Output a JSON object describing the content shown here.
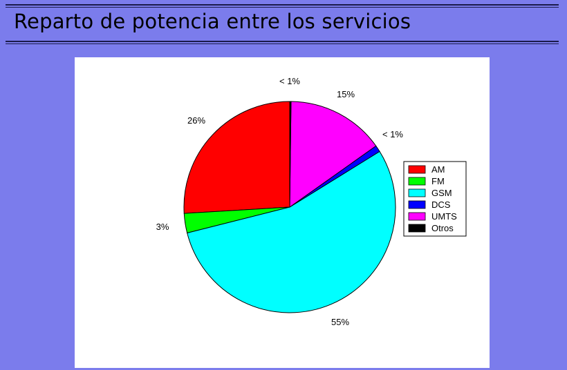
{
  "slide": {
    "title": "Reparto de potencia entre los servicios"
  },
  "chart_data": {
    "type": "pie",
    "title": "",
    "categories": [
      "AM",
      "FM",
      "GSM",
      "DCS",
      "UMTS",
      "Otros"
    ],
    "values": [
      26,
      3,
      55,
      1,
      15,
      0.2
    ],
    "labels": [
      "26%",
      "3%",
      "55%",
      "< 1%",
      "15%",
      "< 1%"
    ],
    "colors": [
      "#ff0000",
      "#00ff00",
      "#00ffff",
      "#0000ff",
      "#ff00ff",
      "#000000"
    ],
    "legend": {
      "position": "right",
      "entries": [
        "AM",
        "FM",
        "GSM",
        "DCS",
        "UMTS",
        "Otros"
      ]
    }
  }
}
